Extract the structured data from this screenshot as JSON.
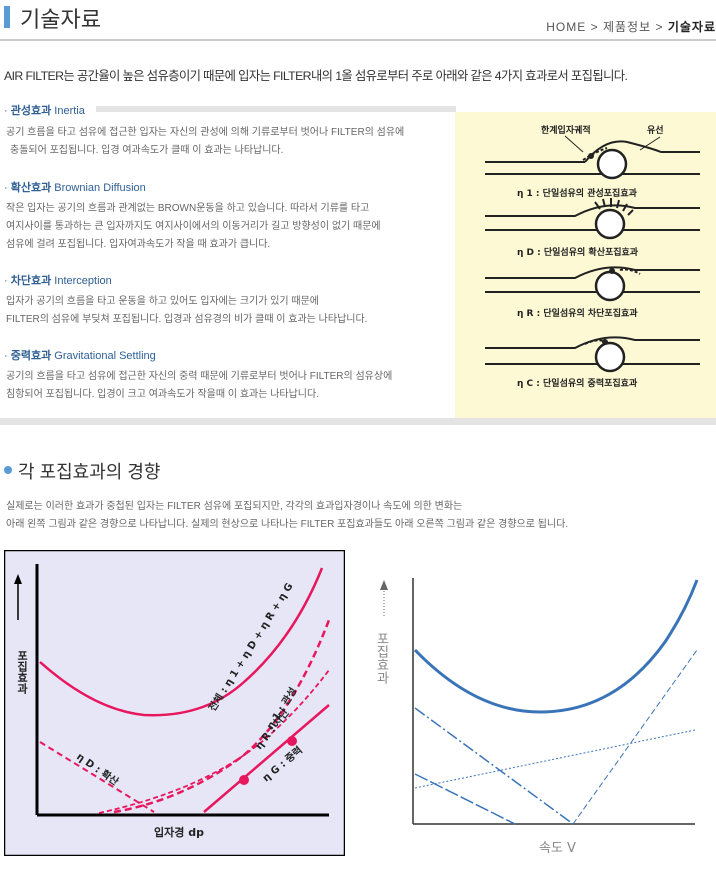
{
  "header": {
    "title": "기술자료",
    "breadcrumb": {
      "home": "HOME",
      "sep1": ">",
      "section": "제품정보",
      "sep2": ">",
      "current": "기술자료"
    }
  },
  "intro": "AIR FILTER는 공간율이 높은 섬유층이기 때문에 입자는 FILTER내의 1올 섬유로부터 주로 아래와 같은 4가지 효과로서 포집됩니다.",
  "sections": [
    {
      "bullet": "·",
      "title_ko": "관성효과",
      "title_en": "Inertia",
      "lines": [
        "공기 흐름을 타고 섬유에 접근한 입자는 자신의 관성에 의해 기류로부터 벗어나 FILTER의 섬유에",
        "충돌되어 포집됩니다. 입경 여과속도가 클때 이 효과는 나타납니다."
      ]
    },
    {
      "bullet": "·",
      "title_ko": "확산효과",
      "title_en": "Brownian Diffusion",
      "lines": [
        "작은 입자는 공기의 흐름과 관계없는 BROWN운동을 하고 있습니다. 따라서 기류를 타고",
        "여지사이를 통과하는 큰 입자까지도 여지사이에서의 이동거리가 길고 방향성이 없기 때문에",
        "섬유에 걸려 포집됩니다. 입자여과속도가 작을 때 효과가 큽니다."
      ]
    },
    {
      "bullet": "·",
      "title_ko": "차단효과",
      "title_en": "Interception",
      "lines": [
        "입자가 공기의 흐름을 타고 운동을 하고 있어도 입자에는 크기가 있기 때문에",
        "FILTER의 섬유에 부딪쳐 포집됩니다. 입경과 섬유경의 비가 클때 이 효과는 나타납니다."
      ]
    },
    {
      "bullet": "·",
      "title_ko": "중력효과",
      "title_en": "Gravitational Settling",
      "lines": [
        "공기의 흐름을 타고 섬유에 접근한 자신의 중력 때문에 기류로부터 벗어나 FILTER의 섬유상에",
        "침항되어 포집됩니다. 입경이 크고 여과속도가 작을때 이 효과는 나타납니다."
      ]
    }
  ],
  "fiber_diagram": {
    "label_limit": "한계입자궤적",
    "label_flow": "유선",
    "captions": [
      "η 1 : 단일섬유의 관성포집효과",
      "η D : 단일섬유의 확산포집효과",
      "η R : 단일섬유의 차단포집효과",
      "η C : 단일섬유의 중력포집효과"
    ]
  },
  "trend": {
    "title": "각 포집효과의 경향",
    "lines": [
      "실제로는 이러한 효과가 중첩된 입자는 FILTER 섬유에 포집되지만, 각각의 효과입자경이나 속도에 의한 변화는",
      "아래 왼쪽 그림과 같은 경향으로 나타납니다. 실제의 현상으로 나타나는 FILTER 포집효과들도 아래 오른쪽 그림과 같은 경향으로 됩니다."
    ]
  },
  "left_chart": {
    "ylabel": "포집효과",
    "xlabel": "입자경 dp",
    "curve_total": "전체 : η 1 + η D + η R + η G",
    "curve_inertia": "η 1 : 관성",
    "curve_intercept": "η R : 차단",
    "curve_gravity": "η G : 중력",
    "curve_diffusion": "η D : 확산",
    "colors": {
      "background": "#e6e6f7",
      "curve": "#e8175d",
      "frame": "#000000"
    }
  },
  "right_chart": {
    "ylabel": "포집효과",
    "xlabel": "속도 V",
    "colors": {
      "curve": "#3a74b8",
      "axis": "#333333"
    }
  }
}
